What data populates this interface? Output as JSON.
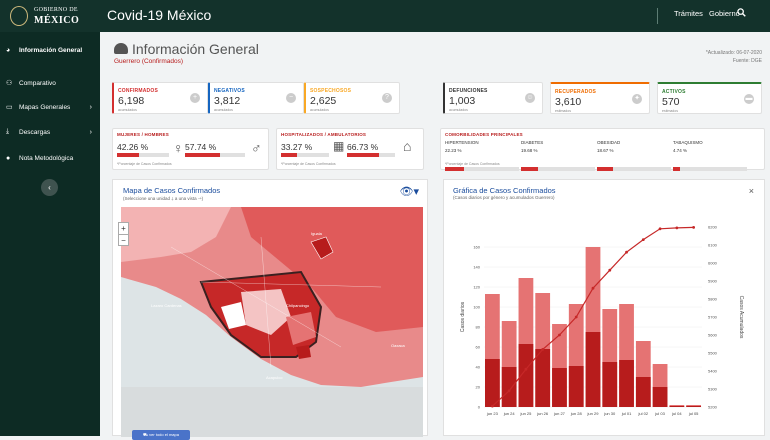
{
  "header": {
    "logo_line1": "GOBIERNO DE",
    "logo_line2": "MÉXICO",
    "app_title": "Covid-19 México",
    "links": [
      "Trámites",
      "Gobierno"
    ],
    "search_icon": "search-icon"
  },
  "sidebar": {
    "items": [
      {
        "label": "Información General",
        "icon": "dashboard-icon"
      },
      {
        "label": "Comparativo",
        "icon": "compare-icon"
      },
      {
        "label": "Mapas Generales",
        "icon": "monitor-icon"
      },
      {
        "label": "Descargas",
        "icon": "download-icon"
      },
      {
        "label": "Nota Metodológica",
        "icon": "info-icon"
      }
    ],
    "collapse_icon": "chevron-left-icon"
  },
  "page": {
    "title": "Información General",
    "subtitle": "Guerrero (Confirmados)",
    "updated": "*Actualizado: 06-07-2020",
    "source": "Fuente: DGE"
  },
  "stats": [
    {
      "label": "CONFIRMADOS",
      "value": "6,198",
      "sub": "acumulados",
      "color": "#d32f2f",
      "icon": "plus-icon"
    },
    {
      "label": "NEGATIVOS",
      "value": "3,812",
      "sub": "acumulados",
      "color": "#1565c0",
      "icon": "minus-icon"
    },
    {
      "label": "SOSPECHOSOS",
      "value": "2,625",
      "sub": "acumulados",
      "color": "#f9a825",
      "icon": "question-icon"
    },
    {
      "label": "DEFUNCIONES",
      "value": "1,003",
      "sub": "acumulados",
      "color": "#333333",
      "icon": "person-icon"
    },
    {
      "label": "RECUPERADOS",
      "value": "3,610",
      "sub": "estimados",
      "color": "#ef6c00",
      "icon": "running-icon"
    },
    {
      "label": "ACTIVOS",
      "value": "570",
      "sub": "estimados",
      "color": "#2e7d32",
      "icon": "bed-icon"
    }
  ],
  "gender": {
    "label": "MUJERES / HOMBRES",
    "women_pct": "42.26 %",
    "men_pct": "57.74 %",
    "women_fraction": 0.4226,
    "men_fraction": 0.5774,
    "note": "*Porcentaje de Casos Confirmados"
  },
  "hospital": {
    "label": "HOSPITALIZADOS / AMBULATORIOS",
    "hosp_pct": "33.27 %",
    "amb_pct": "66.73 %",
    "hosp_fraction": 0.3327,
    "amb_fraction": 0.6673,
    "note": "*Porcentaje de Casos Confirmados"
  },
  "comorbid": {
    "label": "COMORBILIDADES PRINCIPALES",
    "items": [
      {
        "name": "HIPERTENSION",
        "pct": "22.23 %",
        "fraction": 0.2223
      },
      {
        "name": "DIABETES",
        "pct": "19.68 %",
        "fraction": 0.1968
      },
      {
        "name": "OBESIDAD",
        "pct": "18.67 %",
        "fraction": 0.1867
      },
      {
        "name": "TABAQUISMO",
        "pct": "4.74 %",
        "fraction": 0.0474
      }
    ],
    "note": "*Porcentaje de Casos Confirmados"
  },
  "map": {
    "title": "Mapa de Casos Confirmados",
    "subtitle": "(Seleccione una unidad 🡓 a una vista 🡒)",
    "zoom_in": "+",
    "zoom_out": "−",
    "button": "ver todo el mapa",
    "place_labels": [
      "Iguala",
      "Chilpancingo",
      "Lazaro Cardenas",
      "Acapulco",
      "Oaxaca"
    ]
  },
  "chart": {
    "title": "Gráfica de Casos Confirmados",
    "subtitle": "(Casos diarios por género y acumulados Guerrero)",
    "close": "×"
  },
  "chart_data": {
    "type": "bar",
    "categories": [
      "jun 23",
      "jun 24",
      "jun 25",
      "jun 26",
      "jun 27",
      "jun 28",
      "jun 29",
      "jun 30",
      "jul 01",
      "jul 02",
      "jul 03",
      "jul 04",
      "jul 05"
    ],
    "ylabel": "Casos diarios",
    "y2label": "Casos Acumulados",
    "ylim": [
      0,
      180
    ],
    "y2lim": [
      5200,
      6200
    ],
    "yticks": [
      0,
      20,
      40,
      60,
      80,
      100,
      120,
      140,
      160
    ],
    "y2ticks": [
      5200,
      5300,
      5400,
      5500,
      5600,
      5700,
      5800,
      5900,
      6000,
      6100,
      6200
    ],
    "series": [
      {
        "values": [
          113,
          86,
          129,
          114,
          83,
          103,
          160,
          98,
          103,
          66,
          43,
          2,
          2
        ],
        "color": "#e57373"
      },
      {
        "values": [
          48,
          40,
          63,
          58,
          39,
          41,
          75,
          45,
          47,
          30,
          20,
          1,
          1
        ],
        "color": "#b71c1c"
      },
      {
        "values": [
          5205,
          5290,
          5410,
          5520,
          5600,
          5700,
          5860,
          5960,
          6060,
          6130,
          6190,
          6195,
          6198
        ],
        "color": "#c62828"
      }
    ]
  }
}
